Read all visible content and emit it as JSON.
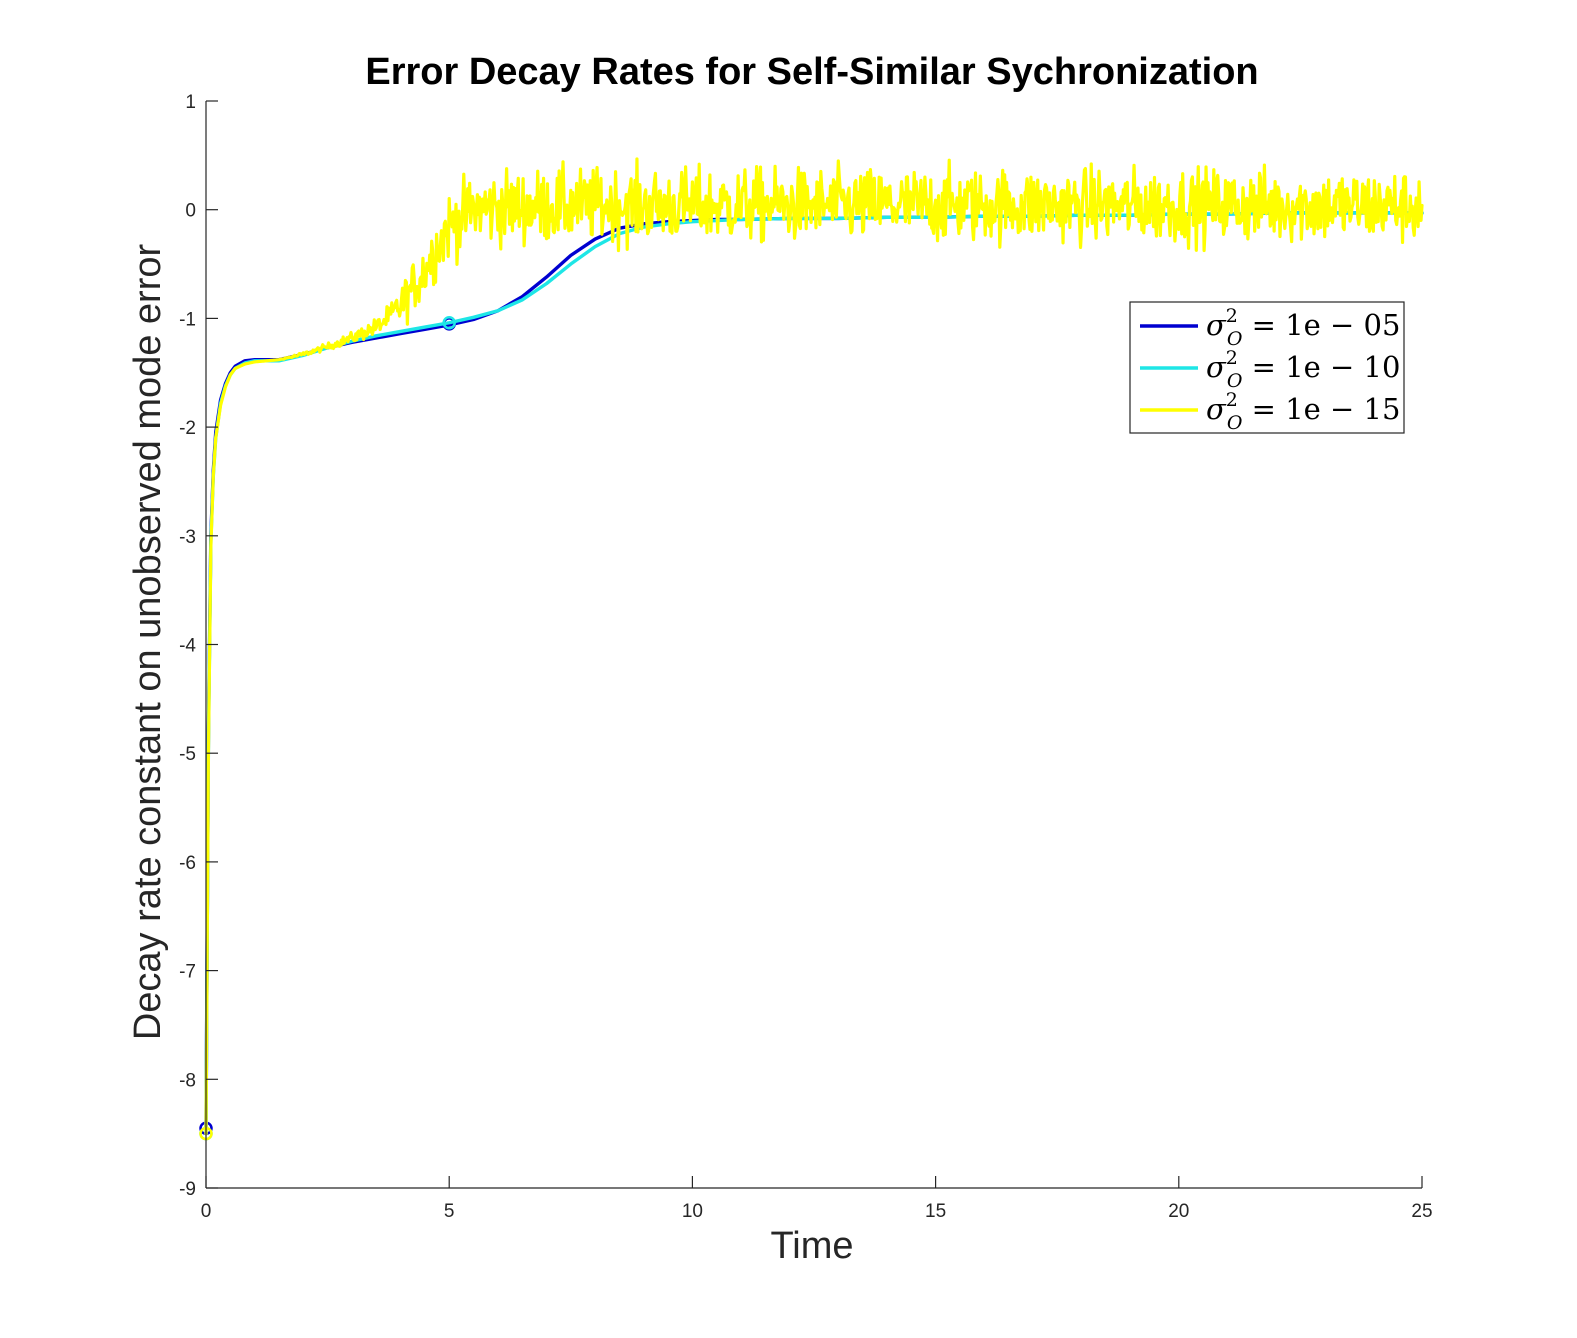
{
  "chart_data": {
    "type": "line",
    "title": "Error Decay Rates for Self-Similar Sychronization",
    "xlabel": "Time",
    "ylabel": "Decay rate constant on unobserved mode error",
    "xlim": [
      0,
      25
    ],
    "ylim": [
      -9,
      1
    ],
    "xticks": [
      0,
      5,
      10,
      15,
      20,
      25
    ],
    "yticks": [
      1,
      0,
      -1,
      -2,
      -3,
      -4,
      -5,
      -6,
      -7,
      -8,
      -9
    ],
    "grid": false,
    "legend_position": "top-right",
    "series": [
      {
        "name": "σ²_O = 1e − 05",
        "legend_base": "σ",
        "legend_sup": "2",
        "legend_sub": "O",
        "legend_rest": " = 1e − 05",
        "color": "#0000d0",
        "x": [
          0,
          0.05,
          0.1,
          0.15,
          0.2,
          0.3,
          0.4,
          0.5,
          0.6,
          0.8,
          1.0,
          1.5,
          2.0,
          2.5,
          3.0,
          3.5,
          4.0,
          4.5,
          5.0,
          5.5,
          6.0,
          6.5,
          7.0,
          7.5,
          8.0,
          8.5,
          9.0,
          9.5,
          10.0,
          10.5,
          11,
          12,
          13,
          14,
          15,
          16,
          17,
          18,
          19,
          20,
          21,
          22,
          23,
          24,
          25
        ],
        "y": [
          -8.45,
          -4.8,
          -3.0,
          -2.4,
          -2.05,
          -1.75,
          -1.6,
          -1.5,
          -1.44,
          -1.39,
          -1.38,
          -1.38,
          -1.33,
          -1.27,
          -1.22,
          -1.18,
          -1.14,
          -1.1,
          -1.06,
          -1.01,
          -0.93,
          -0.8,
          -0.62,
          -0.42,
          -0.27,
          -0.17,
          -0.13,
          -0.11,
          -0.1,
          -0.09,
          -0.09,
          -0.08,
          -0.08,
          -0.07,
          -0.07,
          -0.06,
          -0.06,
          -0.05,
          -0.05,
          -0.04,
          -0.04,
          -0.03,
          -0.03,
          -0.03,
          -0.03
        ],
        "markers": [
          {
            "x": 0,
            "y": -8.45
          },
          {
            "x": 5,
            "y": -1.05
          }
        ]
      },
      {
        "name": "σ²_O = 1e − 10",
        "legend_base": "σ",
        "legend_sup": "2",
        "legend_sub": "O",
        "legend_rest": " = 1e − 10",
        "color": "#1ee6e6",
        "x": [
          0,
          0.05,
          0.1,
          0.15,
          0.2,
          0.3,
          0.4,
          0.5,
          0.6,
          0.8,
          1.0,
          1.5,
          2.0,
          2.5,
          3.0,
          3.5,
          4.0,
          4.5,
          5.0,
          5.5,
          6.0,
          6.5,
          7.0,
          7.5,
          8.0,
          8.5,
          9.0,
          9.5,
          10.0,
          10.5,
          11,
          12,
          13,
          14,
          15,
          16,
          17,
          18,
          19,
          20,
          21,
          22,
          23,
          24,
          25
        ],
        "y": [
          -8.5,
          -4.9,
          -3.05,
          -2.45,
          -2.1,
          -1.78,
          -1.62,
          -1.52,
          -1.46,
          -1.41,
          -1.39,
          -1.39,
          -1.34,
          -1.27,
          -1.21,
          -1.16,
          -1.12,
          -1.08,
          -1.04,
          -0.99,
          -0.93,
          -0.83,
          -0.68,
          -0.5,
          -0.34,
          -0.22,
          -0.16,
          -0.13,
          -0.11,
          -0.1,
          -0.09,
          -0.08,
          -0.08,
          -0.07,
          -0.07,
          -0.06,
          -0.06,
          -0.05,
          -0.05,
          -0.04,
          -0.04,
          -0.03,
          -0.03,
          -0.03,
          -0.03
        ],
        "markers": [
          {
            "x": 0,
            "y": -8.5
          },
          {
            "x": 5,
            "y": -1.04
          }
        ]
      },
      {
        "name": "σ²_O = 1e − 15",
        "legend_base": "σ",
        "legend_sup": "2",
        "legend_sub": "O",
        "legend_rest": " = 1e − 15",
        "color": "#ffff00",
        "noisy": true,
        "x": [
          0,
          0.05,
          0.1,
          0.15,
          0.2,
          0.3,
          0.4,
          0.5,
          0.6,
          0.8,
          1.0,
          1.5,
          2.0,
          2.5,
          3.0,
          3.5,
          3.8,
          4.0,
          4.2,
          4.5,
          4.8,
          5.0,
          5.5,
          6.0,
          7.0,
          8.0,
          9.0,
          10.0,
          12.0,
          14.0,
          16.0,
          18.0,
          20.0,
          22.0,
          24.0,
          25.0
        ],
        "y": [
          -8.5,
          -5.0,
          -3.1,
          -2.45,
          -2.1,
          -1.8,
          -1.63,
          -1.52,
          -1.46,
          -1.42,
          -1.4,
          -1.38,
          -1.33,
          -1.26,
          -1.18,
          -1.08,
          -0.98,
          -0.88,
          -0.75,
          -0.55,
          -0.3,
          -0.15,
          0.0,
          0.02,
          0.03,
          0.04,
          0.04,
          0.04,
          0.04,
          0.04,
          0.04,
          0.04,
          0.04,
          0.04,
          0.03,
          0.03
        ],
        "noise_amplitude": [
          0,
          0,
          0,
          0,
          0,
          0,
          0,
          0,
          0,
          0,
          0,
          0,
          0.02,
          0.03,
          0.05,
          0.08,
          0.12,
          0.18,
          0.22,
          0.26,
          0.28,
          0.3,
          0.32,
          0.33,
          0.33,
          0.33,
          0.33,
          0.33,
          0.33,
          0.33,
          0.33,
          0.33,
          0.33,
          0.33,
          0.33,
          0.33
        ],
        "markers": [
          {
            "x": 0,
            "y": -8.5
          }
        ]
      }
    ]
  }
}
